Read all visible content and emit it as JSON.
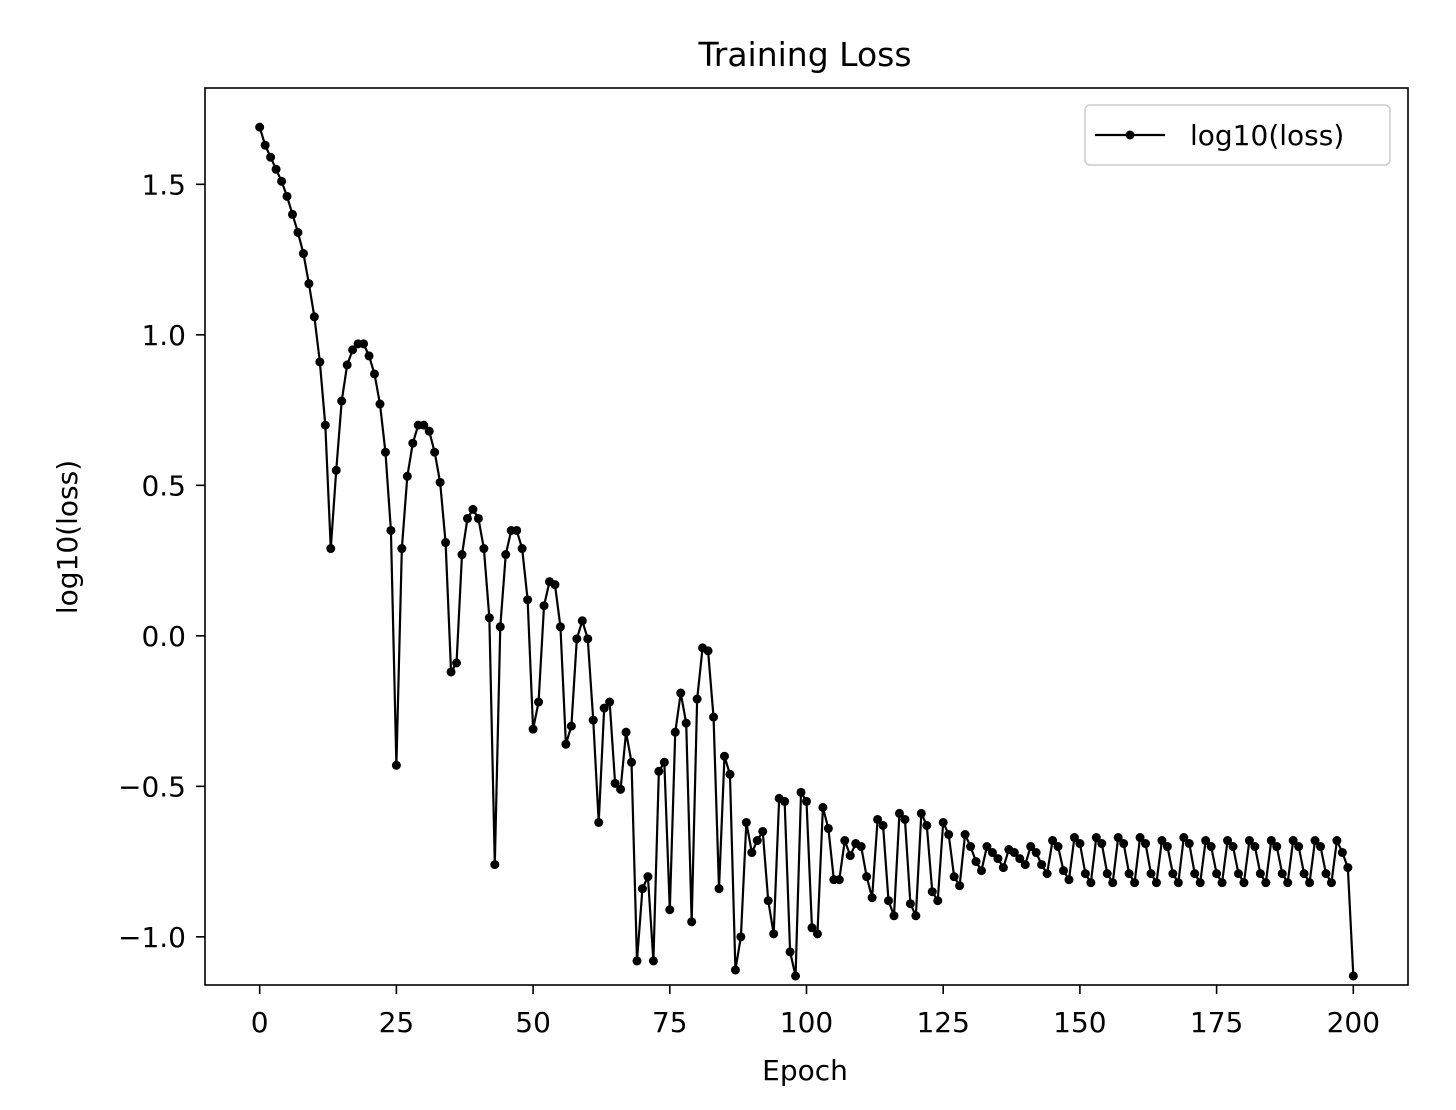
{
  "chart_data": {
    "type": "line",
    "title": "Training Loss",
    "xlabel": "Epoch",
    "ylabel": "log10(loss)",
    "xlim": [
      -10,
      210
    ],
    "ylim": [
      -1.16,
      1.82
    ],
    "xticks": [
      0,
      25,
      50,
      75,
      100,
      125,
      150,
      175,
      200
    ],
    "yticks": [
      -1.0,
      -0.5,
      0.0,
      0.5,
      1.0,
      1.5
    ],
    "xtick_labels": [
      "0",
      "25",
      "50",
      "75",
      "100",
      "125",
      "150",
      "175",
      "200"
    ],
    "ytick_labels": [
      "−1.0",
      "−0.5",
      "0.0",
      "0.5",
      "1.0",
      "1.5"
    ],
    "grid": false,
    "legend_position": "top-right",
    "color": "#000000",
    "series": [
      {
        "name": "log10(loss)",
        "marker": "point",
        "x": [
          0,
          1,
          2,
          3,
          4,
          5,
          6,
          7,
          8,
          9,
          10,
          11,
          12,
          13,
          14,
          15,
          16,
          17,
          18,
          19,
          20,
          21,
          22,
          23,
          24,
          25,
          26,
          27,
          28,
          29,
          30,
          31,
          32,
          33,
          34,
          35,
          36,
          37,
          38,
          39,
          40,
          41,
          42,
          43,
          44,
          45,
          46,
          47,
          48,
          49,
          50,
          51,
          52,
          53,
          54,
          55,
          56,
          57,
          58,
          59,
          60,
          61,
          62,
          63,
          64,
          65,
          66,
          67,
          68,
          69,
          70,
          71,
          72,
          73,
          74,
          75,
          76,
          77,
          78,
          79,
          80,
          81,
          82,
          83,
          84,
          85,
          86,
          87,
          88,
          89,
          90,
          91,
          92,
          93,
          94,
          95,
          96,
          97,
          98,
          99,
          100,
          101,
          102,
          103,
          104,
          105,
          106,
          107,
          108,
          109,
          110,
          111,
          112,
          113,
          114,
          115,
          116,
          117,
          118,
          119,
          120,
          121,
          122,
          123,
          124,
          125,
          126,
          127,
          128,
          129,
          130,
          131,
          132,
          133,
          134,
          135,
          136,
          137,
          138,
          139,
          140,
          141,
          142,
          143,
          144,
          145,
          146,
          147,
          148,
          149,
          150,
          151,
          152,
          153,
          154,
          155,
          156,
          157,
          158,
          159,
          160,
          161,
          162,
          163,
          164,
          165,
          166,
          167,
          168,
          169,
          170,
          171,
          172,
          173,
          174,
          175,
          176,
          177,
          178,
          179,
          180,
          181,
          182,
          183,
          184,
          185,
          186,
          187,
          188,
          189,
          190,
          191,
          192,
          193,
          194,
          195,
          196,
          197,
          198,
          199,
          200
        ],
        "y": [
          1.69,
          1.63,
          1.59,
          1.55,
          1.51,
          1.46,
          1.4,
          1.34,
          1.27,
          1.17,
          1.06,
          0.91,
          0.7,
          0.29,
          0.55,
          0.78,
          0.9,
          0.95,
          0.97,
          0.97,
          0.93,
          0.87,
          0.77,
          0.61,
          0.35,
          -0.43,
          0.29,
          0.53,
          0.64,
          0.7,
          0.7,
          0.68,
          0.61,
          0.51,
          0.31,
          -0.12,
          -0.09,
          0.27,
          0.39,
          0.42,
          0.39,
          0.29,
          0.06,
          -0.76,
          0.03,
          0.27,
          0.35,
          0.35,
          0.29,
          0.12,
          -0.31,
          -0.22,
          0.1,
          0.18,
          0.17,
          0.03,
          -0.36,
          -0.3,
          -0.01,
          0.05,
          -0.01,
          -0.28,
          -0.62,
          -0.24,
          -0.22,
          -0.49,
          -0.51,
          -0.32,
          -0.42,
          -1.08,
          -0.84,
          -0.8,
          -1.08,
          -0.45,
          -0.42,
          -0.91,
          -0.32,
          -0.19,
          -0.29,
          -0.95,
          -0.21,
          -0.04,
          -0.05,
          -0.27,
          -0.84,
          -0.4,
          -0.46,
          -1.11,
          -1.0,
          -0.62,
          -0.72,
          -0.68,
          -0.65,
          -0.88,
          -0.99,
          -0.54,
          -0.55,
          -1.05,
          -1.13,
          -0.52,
          -0.55,
          -0.97,
          -0.99,
          -0.57,
          -0.64,
          -0.81,
          -0.81,
          -0.68,
          -0.73,
          -0.69,
          -0.7,
          -0.8,
          -0.87,
          -0.61,
          -0.63,
          -0.88,
          -0.93,
          -0.59,
          -0.61,
          -0.89,
          -0.93,
          -0.59,
          -0.63,
          -0.85,
          -0.88,
          -0.62,
          -0.66,
          -0.8,
          -0.83,
          -0.66,
          -0.7,
          -0.75,
          -0.78,
          -0.7,
          -0.72,
          -0.74,
          -0.77,
          -0.71,
          -0.72,
          -0.74,
          -0.76,
          -0.7,
          -0.72,
          -0.76,
          -0.79,
          -0.68,
          -0.7,
          -0.78,
          -0.81,
          -0.67,
          -0.69,
          -0.79,
          -0.82,
          -0.67,
          -0.69,
          -0.79,
          -0.82,
          -0.67,
          -0.69,
          -0.79,
          -0.82,
          -0.67,
          -0.69,
          -0.79,
          -0.82,
          -0.68,
          -0.7,
          -0.79,
          -0.82,
          -0.67,
          -0.69,
          -0.79,
          -0.82,
          -0.68,
          -0.7,
          -0.79,
          -0.82,
          -0.68,
          -0.7,
          -0.79,
          -0.82,
          -0.68,
          -0.7,
          -0.79,
          -0.82,
          -0.68,
          -0.7,
          -0.79,
          -0.82,
          -0.68,
          -0.7,
          -0.79,
          -0.82,
          -0.68,
          -0.7,
          -0.79,
          -0.82,
          -0.68,
          -0.72,
          -0.77,
          -1.13
        ]
      }
    ]
  }
}
